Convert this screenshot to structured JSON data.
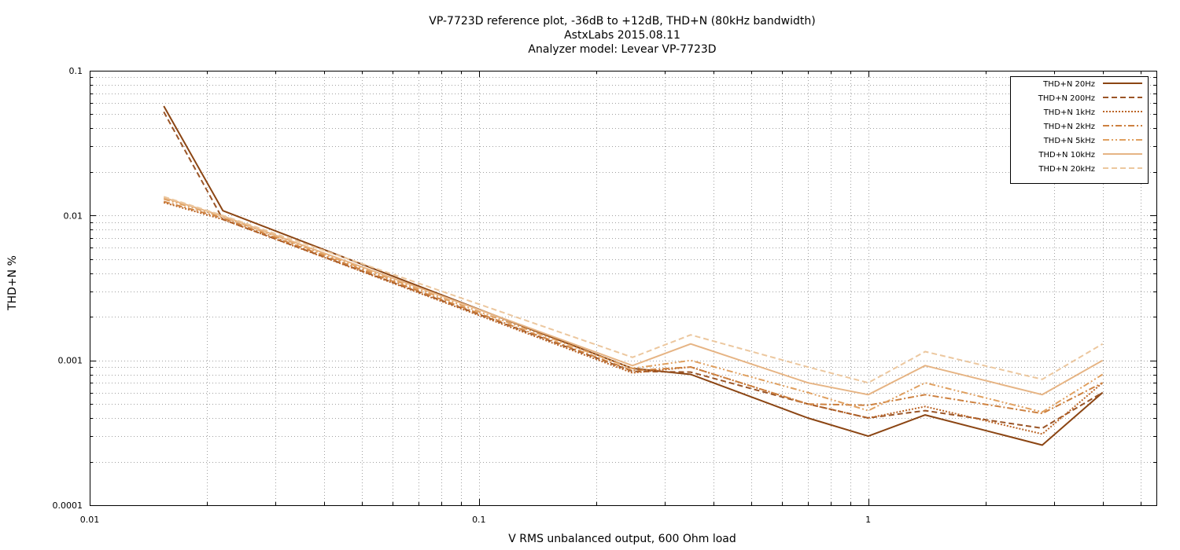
{
  "chart_data": {
    "type": "line",
    "title": "VP-7723D reference plot, -36dB to +12dB, THD+N (80kHz bandwidth)",
    "subtitle": "AstxLabs 2015.08.11",
    "subtitle2": "Analyzer model: Levear VP-7723D",
    "xlabel": "V RMS unbalanced output, 600 Ohm load",
    "ylabel": "THD+N %",
    "xscale": "log",
    "yscale": "log",
    "xlim": [
      0.01,
      5.5
    ],
    "ylim": [
      0.0001,
      0.1
    ],
    "x_ticks": [
      0.01,
      0.1,
      1
    ],
    "x_tick_labels": [
      "0.01",
      "0.1",
      "1"
    ],
    "y_ticks": [
      0.0001,
      0.001,
      0.01,
      0.1
    ],
    "y_tick_labels": [
      "0.0001",
      "0.001",
      "0.01",
      "0.1"
    ],
    "grid": true,
    "legend_position": "top-right",
    "x": [
      0.0155,
      0.022,
      0.248,
      0.35,
      0.7,
      1.0,
      1.4,
      2.8,
      4.0
    ],
    "series": [
      {
        "name": "THD+N 20Hz",
        "color": "#8b4513",
        "dash": "solid",
        "width": 2,
        "values": [
          0.057,
          0.0108,
          0.00088,
          0.0008,
          0.0004,
          0.0003,
          0.00042,
          0.00026,
          0.0006
        ]
      },
      {
        "name": "THD+N 200Hz",
        "color": "#9b5527",
        "dash": "dashed",
        "width": 2,
        "values": [
          0.052,
          0.0094,
          0.00084,
          0.00083,
          0.0005,
          0.0004,
          0.00045,
          0.00034,
          0.0006
        ]
      },
      {
        "name": "THD+N 1kHz",
        "color": "#bb6527",
        "dash": "dotted",
        "width": 2,
        "values": [
          0.0123,
          0.0094,
          0.00082,
          0.0009,
          0.0005,
          0.0004,
          0.00048,
          0.00031,
          0.0007
        ]
      },
      {
        "name": "THD+N 2kHz",
        "color": "#cd8140",
        "dash": "dashdot",
        "width": 2,
        "values": [
          0.0125,
          0.0096,
          0.00085,
          0.0009,
          0.0005,
          0.00049,
          0.00058,
          0.00043,
          0.0007
        ]
      },
      {
        "name": "THD+N 5kHz",
        "color": "#e0a060",
        "dash": "dashdotdot",
        "width": 2,
        "values": [
          0.013,
          0.0098,
          0.00088,
          0.001,
          0.0006,
          0.00045,
          0.0007,
          0.00044,
          0.0008
        ]
      },
      {
        "name": "THD+N 10kHz",
        "color": "#e6b484",
        "dash": "solid",
        "width": 2,
        "values": [
          0.0133,
          0.0099,
          0.00092,
          0.0013,
          0.0007,
          0.00058,
          0.00092,
          0.00058,
          0.001
        ]
      },
      {
        "name": "THD+N 20kHz",
        "color": "#ecc79e",
        "dash": "dashed",
        "width": 2,
        "values": [
          0.0135,
          0.01,
          0.00105,
          0.0015,
          0.0009,
          0.0007,
          0.00115,
          0.00074,
          0.0013
        ]
      }
    ]
  }
}
